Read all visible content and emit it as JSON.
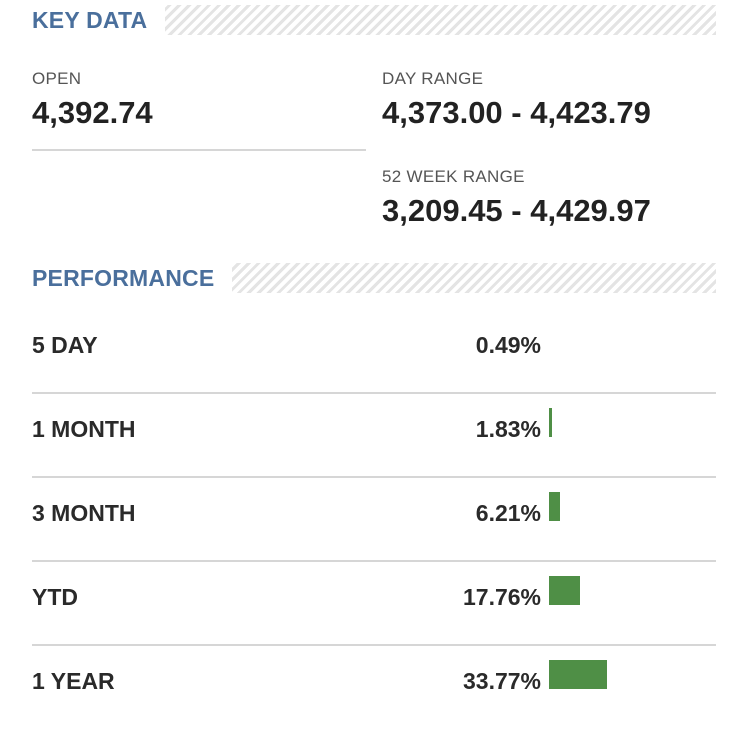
{
  "key_data": {
    "title": "KEY DATA",
    "open": {
      "label": "OPEN",
      "value": "4,392.74"
    },
    "day_range": {
      "label": "DAY RANGE",
      "value": "4,373.00 - 4,423.79"
    },
    "week52_range": {
      "label": "52 WEEK RANGE",
      "value": "3,209.45 - 4,429.97"
    }
  },
  "performance": {
    "title": "PERFORMANCE",
    "rows": [
      {
        "label": "5 DAY",
        "value": "0.49%",
        "pct": 0.49
      },
      {
        "label": "1 MONTH",
        "value": "1.83%",
        "pct": 1.83
      },
      {
        "label": "3 MONTH",
        "value": "6.21%",
        "pct": 6.21
      },
      {
        "label": "YTD",
        "value": "17.76%",
        "pct": 17.76
      },
      {
        "label": "1 YEAR",
        "value": "33.77%",
        "pct": 33.77
      }
    ],
    "bar_color": "#4f8f46"
  },
  "colors": {
    "section_title": "#4a6f9c",
    "text": "#222222",
    "divider": "#d6d6d6"
  }
}
